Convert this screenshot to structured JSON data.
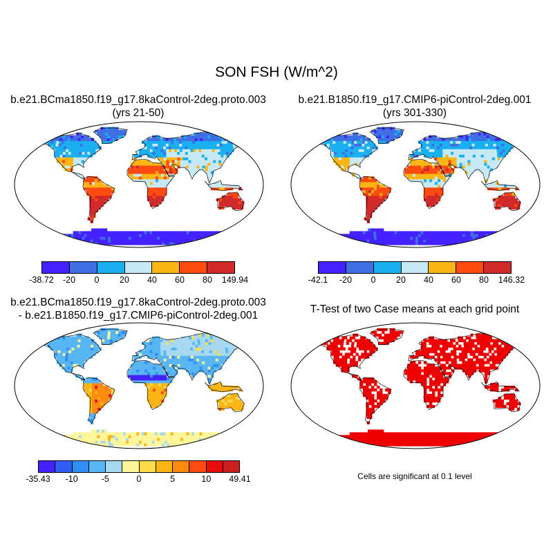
{
  "figure": {
    "title": "SON FSH (W/m^2)"
  },
  "panels": [
    {
      "id": "case1",
      "title_line1": "b.e21.BCma1850.f19_g17.8kaControl-2deg.proto.003",
      "title_line2": "(yrs 21-50)",
      "colorbar": {
        "colors": [
          "#4422ff",
          "#3f6fe3",
          "#1ab0f0",
          "#c7e8f5",
          "#fbb514",
          "#ff4a10",
          "#d22a2a"
        ],
        "tick_labels": [
          "-38.72",
          "-20",
          "0",
          "20",
          "40",
          "60",
          "80",
          "149.94"
        ]
      }
    },
    {
      "id": "case2",
      "title_line1": "b.e21.B1850.f19_g17.CMIP6-piControl-2deg.001",
      "title_line2": "(yrs 301-330)",
      "colorbar": {
        "colors": [
          "#4422ff",
          "#3f6fe3",
          "#1ab0f0",
          "#c7e8f5",
          "#fbb514",
          "#ff4a10",
          "#d22a2a"
        ],
        "tick_labels": [
          "-42.1",
          "-20",
          "0",
          "20",
          "40",
          "60",
          "80",
          "146.32"
        ]
      }
    },
    {
      "id": "difference",
      "title_line1": "b.e21.BCma1850.f19_g17.8kaControl-2deg.proto.003",
      "title_line2": "- b.e21.B1850.f19_g17.CMIP6-piControl-2deg.001",
      "colorbar": {
        "colors": [
          "#4422ff",
          "#2f5ff2",
          "#2f8ff2",
          "#58b6f4",
          "#a8d8f0",
          "#fff59a",
          "#fddc4a",
          "#fbb514",
          "#ff8c10",
          "#ff4a10",
          "#e60d0d",
          "#cc2020"
        ],
        "tick_labels": [
          "-35.43",
          "-10",
          "-5",
          "0",
          "5",
          "10",
          "49.41"
        ]
      }
    },
    {
      "id": "ttest",
      "title_line1": "T-Test of two Case means at each grid point",
      "note": "Cells are significant at 0.1 level",
      "significant_color": "#ee0000"
    }
  ],
  "palette": {
    "ocean": "#ffffff",
    "coast": "#000000"
  }
}
